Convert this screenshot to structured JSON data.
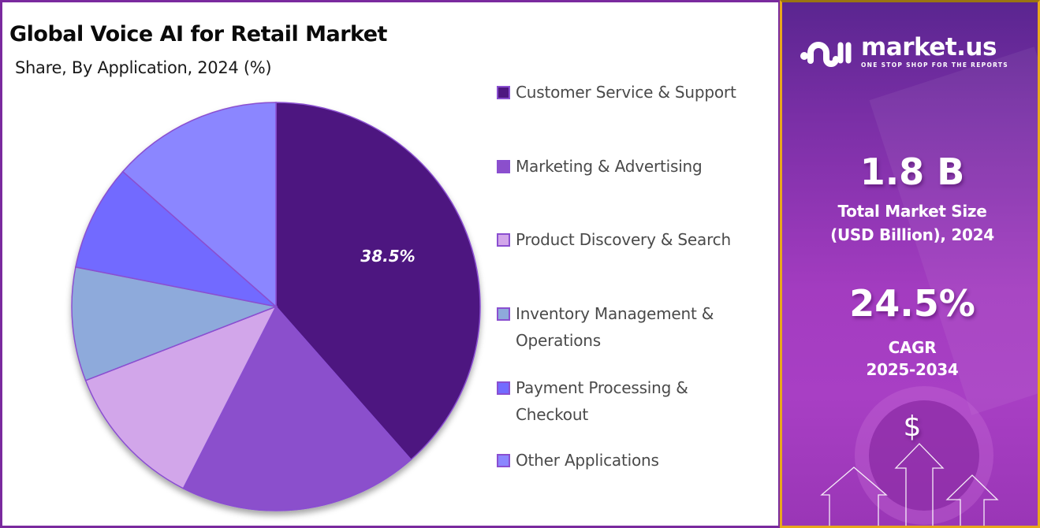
{
  "chart_data": {
    "type": "pie",
    "title": "Global Voice AI for Retail Market",
    "subtitle": "Share, By Application, 2024 (%)",
    "categories": [
      "Customer Service & Support",
      "Marketing & Advertising",
      "Product Discovery & Search",
      "Inventory Management & Operations",
      "Payment Processing & Checkout",
      "Other Applications"
    ],
    "values": [
      38.5,
      19.0,
      11.6,
      9.0,
      8.4,
      13.5
    ],
    "colors": [
      "#4e1780",
      "#8b4fcc",
      "#d2a6ea",
      "#8eaadb",
      "#726bff",
      "#8b86ff"
    ],
    "data_labels": [
      {
        "category": "Customer Service & Support",
        "text": "38.5%"
      }
    ],
    "start_angle": "12 o'clock, clockwise",
    "legend_position": "right"
  },
  "header": {
    "title": "Global Voice AI for Retail Market",
    "subtitle": "Share, By Application, 2024 (%)"
  },
  "legend": {
    "items": [
      {
        "label_lines": [
          "Customer Service & Support"
        ],
        "color": "#4e1780"
      },
      {
        "label_lines": [
          "Marketing & Advertising"
        ],
        "color": "#8b4fcc"
      },
      {
        "label_lines": [
          "Product Discovery & Search"
        ],
        "color": "#d2a6ea"
      },
      {
        "label_lines": [
          "Inventory Management &",
          "Operations"
        ],
        "color": "#8eaadb"
      },
      {
        "label_lines": [
          "Payment Processing &",
          "Checkout"
        ],
        "color": "#726bff"
      },
      {
        "label_lines": [
          "Other Applications"
        ],
        "color": "#8b86ff"
      }
    ]
  },
  "pie_label": "38.5%",
  "sidebar": {
    "logo_name": "market.us",
    "logo_tagline": "ONE STOP SHOP FOR THE REPORTS",
    "market_size_value": "1.8 B",
    "market_size_label_1": "Total Market Size",
    "market_size_label_2": "(USD Billion), 2024",
    "cagr_value": "24.5%",
    "cagr_label_1": "CAGR",
    "cagr_label_2": "2025-2034",
    "dollar_symbol": "$"
  },
  "colors": {
    "frame_purple": "#7a2a9e",
    "sidebar_border": "#e8a81c",
    "slice_border": "#8a4fd0"
  }
}
